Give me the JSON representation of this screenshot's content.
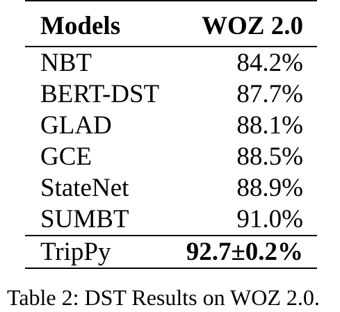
{
  "table": {
    "headers": [
      "Models",
      "WOZ 2.0"
    ],
    "rows": [
      {
        "model": "NBT",
        "score": "84.2%"
      },
      {
        "model": "BERT-DST",
        "score": "87.7%"
      },
      {
        "model": "GLAD",
        "score": "88.1%"
      },
      {
        "model": "GCE",
        "score": "88.5%"
      },
      {
        "model": "StateNet",
        "score": "88.9%"
      },
      {
        "model": "SUMBT",
        "score": "91.0%"
      }
    ],
    "final_row": {
      "model": "TripPy",
      "score": "92.7±0.2%"
    }
  },
  "caption": "Table 2:  DST Results on WOZ 2.0."
}
